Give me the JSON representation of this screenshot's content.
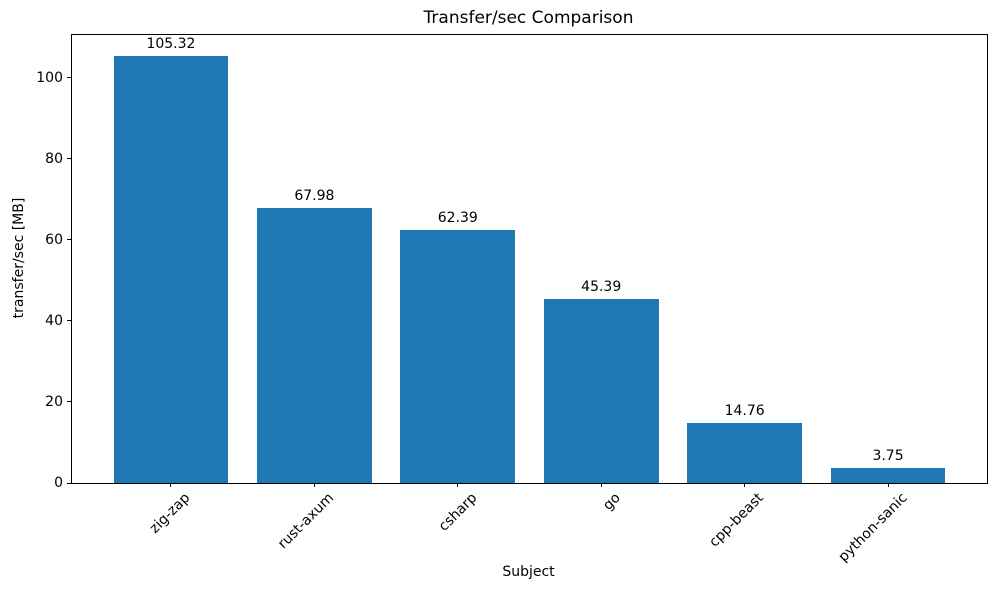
{
  "chart_data": {
    "type": "bar",
    "title": "Transfer/sec Comparison",
    "xlabel": "Subject",
    "ylabel": "transfer/sec [MB]",
    "categories": [
      "zig-zap",
      "rust-axum",
      "csharp",
      "go",
      "cpp-beast",
      "python-sanic"
    ],
    "values": [
      105.32,
      67.98,
      62.39,
      45.39,
      14.76,
      3.75
    ],
    "value_labels": [
      "105.32",
      "67.98",
      "62.39",
      "45.39",
      "14.76",
      "3.75"
    ],
    "yticks": [
      0,
      20,
      40,
      60,
      80,
      100
    ],
    "ylim": [
      0,
      110.59
    ],
    "bar_width_fraction": 0.8,
    "grid": false,
    "legend": "none",
    "colors": {
      "bar": "#1f77b4",
      "axis": "#000000",
      "text": "#000000",
      "background": "#ffffff"
    }
  }
}
